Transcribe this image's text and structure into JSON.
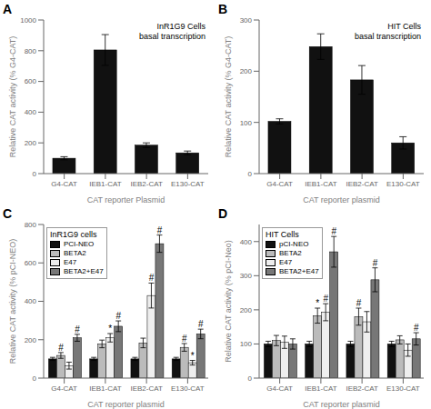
{
  "chart_data": [
    {
      "type": "bar",
      "panel_label": "A",
      "title": "InR1G9 Cells\nbasal transcription",
      "xlabel": "CAT reporter Plasmid",
      "ylabel": "Relative CAT activity (% G4-CAT)",
      "categories": [
        "G4-CAT",
        "IEB1-CAT",
        "IEB2-CAT",
        "E130-CAT"
      ],
      "values": [
        100,
        805,
        185,
        135
      ],
      "errors": [
        10,
        100,
        15,
        12
      ],
      "color": "#111111",
      "ylim": [
        0,
        1000
      ],
      "yticks": [
        0,
        200,
        400,
        600,
        800,
        1000
      ],
      "grid": false
    },
    {
      "type": "bar",
      "panel_label": "B",
      "title": "HIT Cells\nbasal transcription",
      "xlabel": "CAT reporter plasmid",
      "ylabel": "Relative CAT activity (% G4-CAT)",
      "categories": [
        "G4-CAT",
        "IEB1-CAT",
        "IEB2-CAT",
        "E130-CAT"
      ],
      "values": [
        102,
        248,
        183,
        60
      ],
      "errors": [
        5,
        25,
        28,
        12
      ],
      "color": "#111111",
      "ylim": [
        0,
        300
      ],
      "yticks": [
        0,
        100,
        200,
        300
      ],
      "grid": false
    },
    {
      "type": "bar",
      "panel_label": "C",
      "title": "InR1G9 cells",
      "xlabel": "CAT reporter plasmid",
      "ylabel": "Relative CAT activity (% pCI-NEO)",
      "categories": [
        "G4-CAT",
        "IEB1-CAT",
        "IEB2-CAT",
        "E130-CAT"
      ],
      "series": [
        {
          "name": "PCI-NEO",
          "color": "#111111",
          "values": [
            100,
            100,
            100,
            100
          ],
          "errors": [
            8,
            8,
            8,
            8
          ]
        },
        {
          "name": "BETA2",
          "color": "#bbbbbb",
          "values": [
            118,
            178,
            183,
            160
          ],
          "errors": [
            15,
            20,
            25,
            20
          ]
        },
        {
          "name": "E47",
          "color": "#eeeeee",
          "values": [
            65,
            210,
            430,
            80
          ],
          "errors": [
            18,
            22,
            65,
            12
          ]
        },
        {
          "name": "BETA2+E47",
          "color": "#777777",
          "values": [
            210,
            270,
            700,
            230
          ],
          "errors": [
            18,
            28,
            45,
            25
          ]
        }
      ],
      "annotations": [
        {
          "category": "G4-CAT",
          "series": "BETA2+E47",
          "text": "#"
        },
        {
          "category": "G4-CAT",
          "series": "BETA2",
          "text": "#"
        },
        {
          "category": "IEB1-CAT",
          "series": "E47",
          "text": "*"
        },
        {
          "category": "IEB1-CAT",
          "series": "BETA2+E47",
          "text": "#"
        },
        {
          "category": "IEB2-CAT",
          "series": "E47",
          "text": "#"
        },
        {
          "category": "IEB2-CAT",
          "series": "BETA2+E47",
          "text": "#"
        },
        {
          "category": "E130-CAT",
          "series": "E47",
          "text": "*"
        },
        {
          "category": "E130-CAT",
          "series": "BETA2+E47",
          "text": "#"
        },
        {
          "category": "E130-CAT",
          "series": "BETA2",
          "text": "#"
        }
      ],
      "legend": "upper left",
      "ylim": [
        0,
        800
      ],
      "yticks": [
        0,
        200,
        400,
        600,
        800
      ],
      "grid": false
    },
    {
      "type": "bar",
      "panel_label": "D",
      "title": "HIT Cells",
      "xlabel": "CAT reporter plasmid",
      "ylabel": "Relative CAT activity (% pCI-Neo)",
      "categories": [
        "G4-CAT",
        "IEB1-CAT",
        "IEB2-CAT",
        "E130-CAT"
      ],
      "series": [
        {
          "name": "pCI-NEO",
          "color": "#111111",
          "values": [
            100,
            100,
            100,
            100
          ],
          "errors": [
            8,
            8,
            8,
            8
          ]
        },
        {
          "name": "BETA2",
          "color": "#bbbbbb",
          "values": [
            110,
            183,
            180,
            112
          ],
          "errors": [
            15,
            22,
            25,
            12
          ]
        },
        {
          "name": "E47",
          "color": "#eeeeee",
          "values": [
            105,
            193,
            165,
            82
          ],
          "errors": [
            18,
            25,
            30,
            18
          ]
        },
        {
          "name": "BETA2+E47",
          "color": "#777777",
          "values": [
            100,
            370,
            288,
            115
          ],
          "errors": [
            15,
            45,
            35,
            18
          ]
        }
      ],
      "annotations": [
        {
          "category": "IEB1-CAT",
          "series": "BETA2",
          "text": "*"
        },
        {
          "category": "IEB1-CAT",
          "series": "E47",
          "text": "#"
        },
        {
          "category": "IEB1-CAT",
          "series": "BETA2+E47",
          "text": "#"
        },
        {
          "category": "IEB2-CAT",
          "series": "BETA2",
          "text": "#"
        },
        {
          "category": "IEB2-CAT",
          "series": "BETA2+E47",
          "text": "#"
        },
        {
          "category": "E130-CAT",
          "series": "BETA2+E47",
          "text": "#"
        }
      ],
      "legend": "upper left",
      "ylim": [
        0,
        450
      ],
      "yticks": [
        0,
        100,
        200,
        300,
        400
      ],
      "grid": false
    }
  ]
}
